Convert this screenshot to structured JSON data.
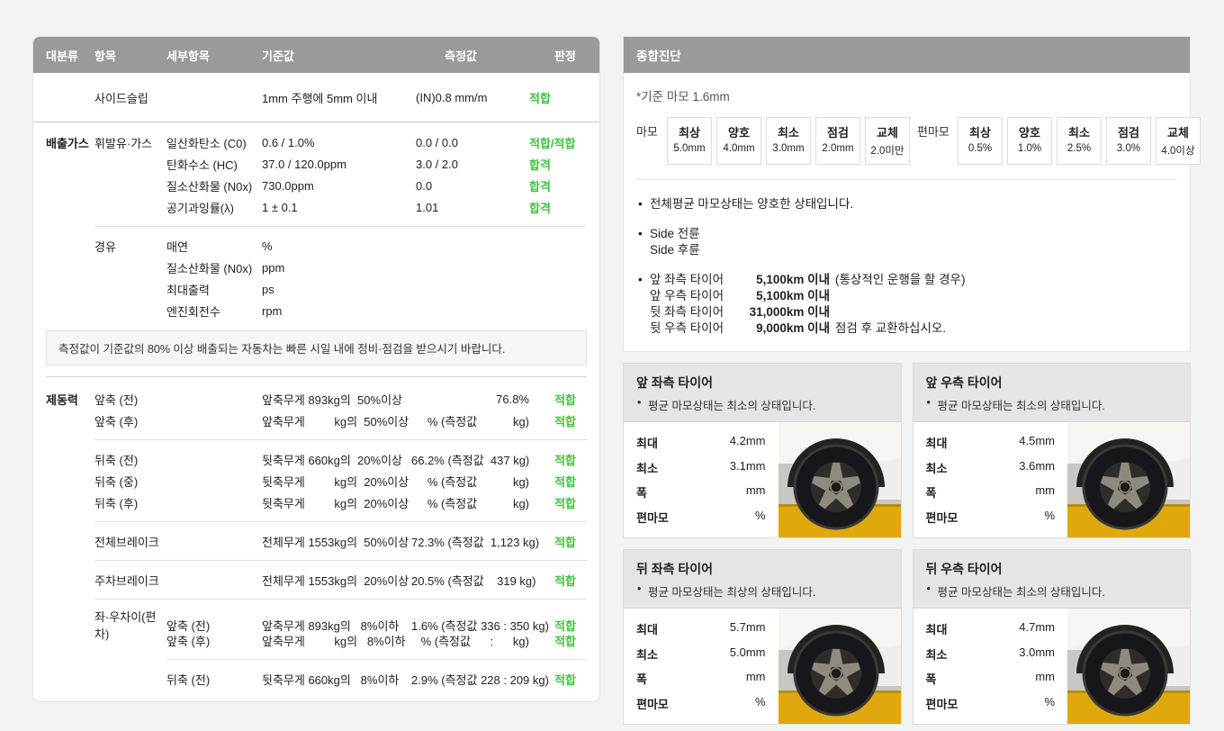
{
  "colors": {
    "verdict_green": "#3dc43d",
    "header_bar": "#9a9a9a",
    "floor_yellow": "#dfa90d"
  },
  "table": {
    "headers": [
      "대분류",
      "항목",
      "세부항목",
      "기준값",
      "측정값",
      "판정"
    ],
    "notice": "측정값이 기준값의 80% 이상 배출되는 자동차는 빠른 시일 내에 정비·점검을 받으시기 바랍니다.",
    "rows": [
      {
        "type": "top",
        "tall": true,
        "cat": "",
        "item": "사이드슬립",
        "sub": "",
        "std": "1mm 주행에 5mm 이내",
        "meas": "(IN)0.8 mm/m",
        "verdict": "적합"
      },
      {
        "divider": "full"
      },
      {
        "type": "top",
        "cat": "배출가스",
        "item": "휘발유·가스",
        "sub": "일산화탄소 (C0)",
        "std": "0.6 / 1.0%",
        "meas": "0.0 / 0.0",
        "verdict": "적합/적합"
      },
      {
        "type": "top",
        "cat": "",
        "item": "",
        "sub": "탄화수소 (HC)",
        "std": "37.0 / 120.0ppm",
        "meas": "3.0 / 2.0",
        "verdict": "합격"
      },
      {
        "type": "top",
        "cat": "",
        "item": "",
        "sub": "질소산화물 (N0x)",
        "std": "730.0ppm",
        "meas": "0.0",
        "verdict": "합격"
      },
      {
        "type": "top",
        "cat": "",
        "item": "",
        "sub": "공기과잉률(λ)",
        "std": "1 ± 0.1",
        "meas": "1.01",
        "verdict": "합격"
      },
      {
        "divider": "indent"
      },
      {
        "type": "top",
        "cat": "",
        "item": "경유",
        "sub": "매연",
        "std": "%",
        "meas": "",
        "verdict": ""
      },
      {
        "type": "top",
        "cat": "",
        "item": "",
        "sub": "질소산화물 (N0x)",
        "std": "ppm",
        "meas": "",
        "verdict": ""
      },
      {
        "type": "top",
        "cat": "",
        "item": "",
        "sub": "최대출력",
        "std": "ps",
        "meas": "",
        "verdict": ""
      },
      {
        "type": "top",
        "cat": "",
        "item": "",
        "sub": "엔진회전수",
        "std": "rpm",
        "meas": "",
        "verdict": ""
      },
      {
        "notice": true
      },
      {
        "divider": "full2"
      },
      {
        "type": "brake",
        "cat": "제동력",
        "item": "앞축 (전)",
        "sub": "",
        "std": "앞축무게 893kg의  50%이상",
        "meas": "76.8%",
        "verdict": "적합"
      },
      {
        "type": "brake",
        "cat": "",
        "item": "앞축 (후)",
        "sub": "",
        "std": "앞축무게         kg의  50%이상",
        "meas": "% (측정값           kg)",
        "verdict": "적합"
      },
      {
        "divider": "indent"
      },
      {
        "type": "brake",
        "cat": "",
        "item": "뒤축 (전)",
        "sub": "",
        "std": "뒷축무게 660kg의  20%이상",
        "meas": "66.2% (측정값  437 kg)",
        "verdict": "적합"
      },
      {
        "type": "brake",
        "cat": "",
        "item": "뒤축 (중)",
        "sub": "",
        "std": "뒷축무게         kg의  20%이상",
        "meas": "% (측정값           kg)",
        "verdict": "적합"
      },
      {
        "type": "brake",
        "cat": "",
        "item": "뒤축 (후)",
        "sub": "",
        "std": "뒷축무게         kg의  20%이상",
        "meas": "% (측정값           kg)",
        "verdict": "적합"
      },
      {
        "divider": "indent"
      },
      {
        "type": "brake",
        "cat": "",
        "item": "전체브레이크",
        "sub": "",
        "std": "전체무게 1553kg의  50%이상",
        "meas": "72.3% (측정값  1,123 kg)",
        "verdict": "적합"
      },
      {
        "divider": "indent"
      },
      {
        "type": "brake",
        "cat": "",
        "item": "주차브레이크",
        "sub": "",
        "std": "전체무게 1553kg의  20%이상",
        "meas": "20.5% (측정값    319 kg)",
        "verdict": "적합"
      },
      {
        "divider": "indent"
      },
      {
        "type": "brake",
        "cat": "",
        "item": "좌·우차이(편차)",
        "sub": "앞축 (전)",
        "std": "앞축무게 893kg의   8%이하",
        "meas": "1.6% (측정값 336 : 350 kg)",
        "verdict": "적합"
      },
      {
        "type": "brake",
        "cat": "",
        "item": "",
        "sub": "앞축 (후)",
        "std": "앞축무게         kg의   8%이하",
        "meas": "% (측정값      :      kg)",
        "verdict": "적합"
      },
      {
        "divider": "indent2"
      },
      {
        "type": "brake",
        "cat": "",
        "item": "",
        "sub": "뒤축 (전)",
        "std": "뒷축무게 660kg의   8%이하",
        "meas": "2.9% (측정값 228 : 209 kg)",
        "verdict": "적합"
      }
    ]
  },
  "summary": {
    "title": "종합진단",
    "standard_note": "*기준 마모 1.6mm",
    "scales": [
      {
        "label": "마모",
        "items": [
          {
            "grade": "최상",
            "value": "5.0mm"
          },
          {
            "grade": "양호",
            "value": "4.0mm"
          },
          {
            "grade": "최소",
            "value": "3.0mm"
          },
          {
            "grade": "점검",
            "value": "2.0mm"
          },
          {
            "grade": "교체",
            "value": "2.0미만"
          }
        ]
      },
      {
        "label": "편마모",
        "items": [
          {
            "grade": "최상",
            "value": "0.5%"
          },
          {
            "grade": "양호",
            "value": "1.0%"
          },
          {
            "grade": "최소",
            "value": "2.5%"
          },
          {
            "grade": "점검",
            "value": "3.0%"
          },
          {
            "grade": "교체",
            "value": "4.0이상"
          }
        ]
      }
    ],
    "bullets": [
      {
        "lines": [
          {
            "text": "전체평균 마모상태는 양호한 상태입니다."
          }
        ]
      },
      {
        "lines": [
          {
            "text": "Side 전륜"
          },
          {
            "text": "Side 후륜",
            "nodot": true
          }
        ]
      },
      {
        "lines": [
          {
            "name": "앞 좌측 타이어",
            "value": "5,100km 이내",
            "suffix": "(통상적인 운행을 할 경우)"
          },
          {
            "name": "앞 우측 타이어",
            "value": "5,100km 이내",
            "suffix": "",
            "nodot": true
          },
          {
            "name": "뒷 좌측 타이어",
            "value": "31,000km 이내",
            "suffix": "",
            "nodot": true
          },
          {
            "name": "뒷 우측 타이어",
            "value": "9,000km 이내",
            "suffix": "점검 후 교환하십시오.",
            "nodot": true
          }
        ]
      }
    ]
  },
  "tire_cards": [
    {
      "title": "앞 좌측 타이어",
      "status": "평균 마모상태는 최소의 상태입니다.",
      "stats": [
        {
          "label": "최대",
          "value": "4.2mm"
        },
        {
          "label": "최소",
          "value": "3.1mm"
        },
        {
          "label": "폭",
          "value": "mm"
        },
        {
          "label": "편마모",
          "value": "%"
        }
      ]
    },
    {
      "title": "앞 우측 타이어",
      "status": "평균 마모상태는 최소의 상태입니다.",
      "stats": [
        {
          "label": "최대",
          "value": "4.5mm"
        },
        {
          "label": "최소",
          "value": "3.6mm"
        },
        {
          "label": "폭",
          "value": "mm"
        },
        {
          "label": "편마모",
          "value": "%"
        }
      ]
    },
    {
      "title": "뒤 좌측 타이어",
      "status": "평균 마모상태는 최상의 상태입니다.",
      "stats": [
        {
          "label": "최대",
          "value": "5.7mm"
        },
        {
          "label": "최소",
          "value": "5.0mm"
        },
        {
          "label": "폭",
          "value": "mm"
        },
        {
          "label": "편마모",
          "value": "%"
        }
      ]
    },
    {
      "title": "뒤 우측 타이어",
      "status": "평균 마모상태는 최소의 상태입니다.",
      "stats": [
        {
          "label": "최대",
          "value": "4.7mm"
        },
        {
          "label": "최소",
          "value": "3.0mm"
        },
        {
          "label": "폭",
          "value": "mm"
        },
        {
          "label": "편마모",
          "value": "%"
        }
      ]
    }
  ]
}
